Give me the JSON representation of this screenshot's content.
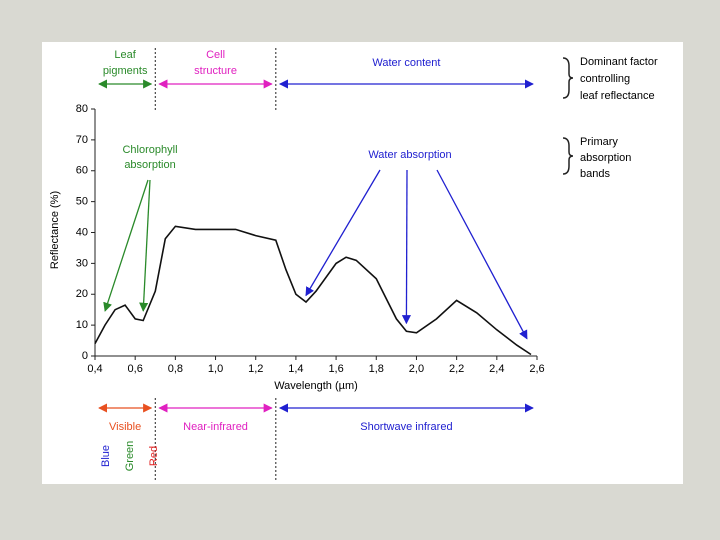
{
  "chart_data": {
    "type": "line",
    "xlabel": "Wavelength (µm)",
    "ylabel": "Reflectance (%)",
    "x": [
      0.4,
      0.45,
      0.5,
      0.55,
      0.6,
      0.64,
      0.7,
      0.75,
      0.8,
      0.9,
      1.0,
      1.1,
      1.2,
      1.3,
      1.35,
      1.4,
      1.45,
      1.5,
      1.6,
      1.65,
      1.7,
      1.8,
      1.9,
      1.95,
      2.0,
      2.1,
      2.2,
      2.3,
      2.4,
      2.5,
      2.57
    ],
    "series": [
      {
        "color": "#111111",
        "values": [
          4,
          10,
          15,
          16.5,
          12,
          11.5,
          21,
          38,
          42,
          41,
          41,
          41,
          39,
          37.5,
          28,
          20,
          17.5,
          21,
          30,
          32,
          31,
          25,
          12,
          8,
          7.5,
          12,
          18,
          14,
          8.5,
          3.5,
          0.5
        ]
      }
    ],
    "xlim": [
      0.4,
      2.6
    ],
    "ylim": [
      0,
      80
    ],
    "xticks": [
      {
        "value": 0.4,
        "label": "0,4"
      },
      {
        "value": 0.6,
        "label": "0,6"
      },
      {
        "value": 0.8,
        "label": "0,8"
      },
      {
        "value": 1.0,
        "label": "1,0"
      },
      {
        "value": 1.2,
        "label": "1,2"
      },
      {
        "value": 1.4,
        "label": "1,4"
      },
      {
        "value": 1.6,
        "label": "1,6"
      },
      {
        "value": 1.8,
        "label": "1,8"
      },
      {
        "value": 2.0,
        "label": "2,0"
      },
      {
        "value": 2.2,
        "label": "2,2"
      },
      {
        "value": 2.4,
        "label": "2,4"
      },
      {
        "value": 2.6,
        "label": "2,6"
      }
    ],
    "yticks": [
      0,
      10,
      20,
      30,
      40,
      50,
      60,
      70,
      80
    ],
    "top_regions": [
      {
        "lines": [
          "Leaf",
          "pigments"
        ],
        "color": "#2a8a2a",
        "range": [
          0.4,
          0.7
        ]
      },
      {
        "lines": [
          "Cell",
          "structure"
        ],
        "color": "#e020c0",
        "range": [
          0.7,
          1.3
        ]
      },
      {
        "lines": [
          "Water content"
        ],
        "color": "#2020d0",
        "range": [
          1.3,
          2.6
        ]
      }
    ],
    "top_note": [
      "Dominant factor",
      "controlling",
      "leaf reflectance"
    ],
    "absorption_note": [
      "Primary",
      "absorption",
      "bands"
    ],
    "annotations": [
      {
        "lines": [
          "Chlorophyll",
          "absorption"
        ],
        "color": "#2a8a2a",
        "x": [
          0.45,
          0.64
        ],
        "y": [
          12,
          12
        ]
      },
      {
        "lines": [
          "Water absorption"
        ],
        "color": "#2020d0",
        "x": [
          1.45,
          1.95,
          2.55
        ],
        "y": [
          17,
          8,
          3
        ]
      }
    ],
    "bottom_regions": [
      {
        "label": "Visible",
        "color": "#e85020",
        "range": [
          0.4,
          0.7
        ]
      },
      {
        "label": "Near-infrared",
        "color": "#e020c0",
        "range": [
          0.7,
          1.3
        ]
      },
      {
        "label": "Shortwave infrared",
        "color": "#2020d0",
        "range": [
          1.3,
          2.6
        ]
      }
    ],
    "bands": [
      {
        "label": "Blue",
        "color": "#2020d0"
      },
      {
        "label": "Green",
        "color": "#2a8a2a"
      },
      {
        "label": "Red",
        "color": "#e02020"
      }
    ]
  }
}
